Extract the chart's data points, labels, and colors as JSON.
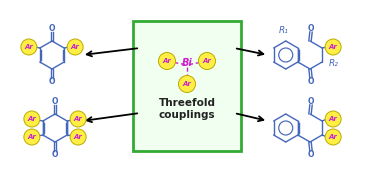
{
  "bg_color": "#ffffff",
  "ar_circle_color": "#ffee44",
  "ar_circle_edge": "#bbaa00",
  "ar_text_color": "#cc22cc",
  "bond_color": "#4466bb",
  "bond_lw": 1.0,
  "o_text_color": "#4466bb",
  "bi_text_color": "#cc22cc",
  "box_edge_color": "#33aa33",
  "box_face_color": "#f0fff0",
  "arrow_color": "#111111",
  "threefold_text": "Threefold\ncouplings",
  "r1_text": "R₁",
  "r2_text": "R₂",
  "ar_label": "Ar",
  "bi_label": "Bi",
  "o_label": "O",
  "fig_w": 3.78,
  "fig_h": 1.73,
  "dpi": 100
}
